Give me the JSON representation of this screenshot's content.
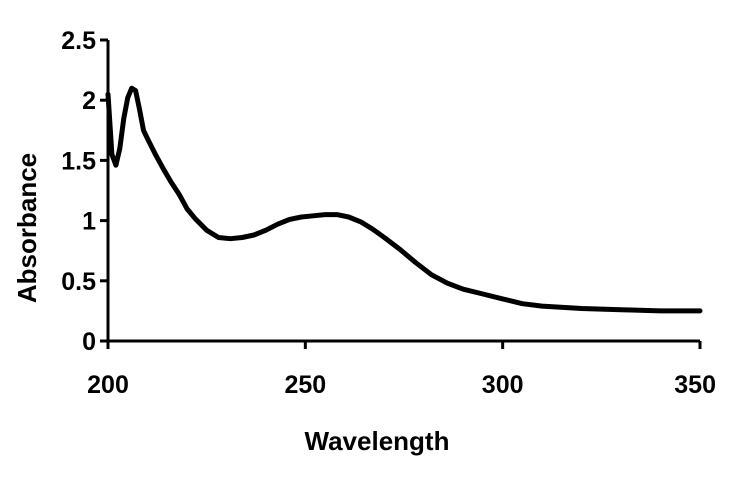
{
  "chart_data": {
    "type": "line",
    "title": "",
    "xlabel": "Wavelength",
    "ylabel": "Absorbance",
    "xlim": [
      200,
      350
    ],
    "ylim": [
      0,
      2.5
    ],
    "xticks": [
      200,
      250,
      300,
      350
    ],
    "yticks": [
      0,
      0.5,
      1,
      1.5,
      2,
      2.5
    ],
    "xtick_labels": [
      "200",
      "250",
      "300",
      "350"
    ],
    "ytick_labels": [
      "0",
      "0.5",
      "1",
      "1.5",
      "2",
      "2.5"
    ],
    "grid": false,
    "line_color": "#000000",
    "series": [
      {
        "x": [
          200,
          201,
          202,
          203,
          204,
          205,
          206,
          207,
          208,
          209,
          210,
          212,
          214,
          216,
          218,
          220,
          222,
          225,
          228,
          231,
          234,
          237,
          240,
          243,
          246,
          249,
          252,
          255,
          258,
          261,
          264,
          267,
          270,
          274,
          278,
          282,
          286,
          290,
          295,
          300,
          305,
          310,
          320,
          330,
          340,
          350
        ],
        "y": [
          2.05,
          1.55,
          1.46,
          1.6,
          1.85,
          2.02,
          2.1,
          2.08,
          1.92,
          1.75,
          1.68,
          1.55,
          1.43,
          1.32,
          1.22,
          1.1,
          1.02,
          0.92,
          0.86,
          0.85,
          0.86,
          0.88,
          0.92,
          0.97,
          1.01,
          1.03,
          1.04,
          1.05,
          1.05,
          1.03,
          0.99,
          0.93,
          0.86,
          0.76,
          0.65,
          0.55,
          0.48,
          0.43,
          0.39,
          0.35,
          0.31,
          0.29,
          0.27,
          0.26,
          0.25,
          0.25
        ]
      }
    ]
  }
}
